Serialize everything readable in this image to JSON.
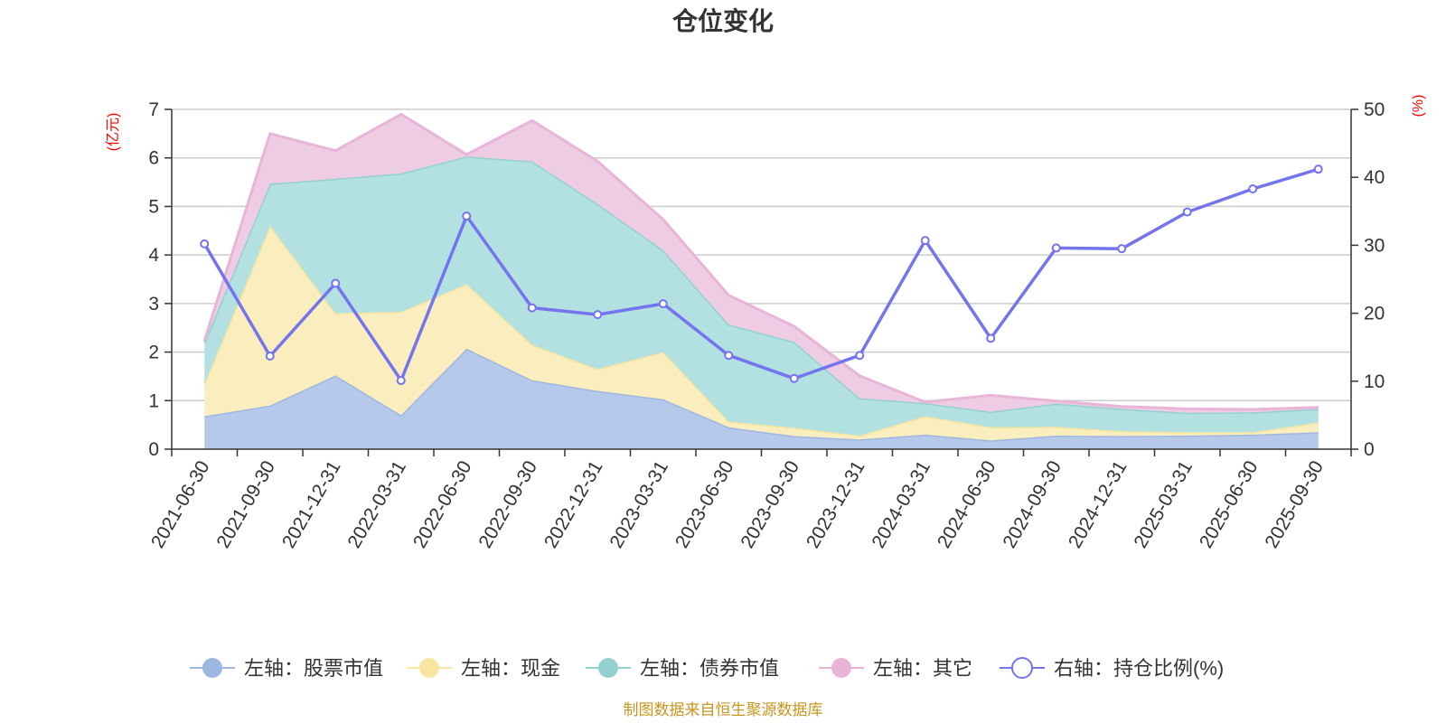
{
  "chart_data": {
    "type": "area",
    "title": "仓位变化",
    "left_axis_unit": "(亿元)",
    "right_axis_unit": "(%)",
    "left_ylim": [
      0,
      7
    ],
    "left_ticks": [
      0,
      1,
      2,
      3,
      4,
      5,
      6,
      7
    ],
    "right_ylim": [
      0,
      50
    ],
    "right_ticks": [
      0,
      10,
      20,
      30,
      40,
      50
    ],
    "categories": [
      "2021-06-30",
      "2021-09-30",
      "2021-12-31",
      "2022-03-31",
      "2022-06-30",
      "2022-09-30",
      "2022-12-31",
      "2023-03-31",
      "2023-06-30",
      "2023-09-30",
      "2023-12-31",
      "2024-03-31",
      "2024-06-30",
      "2024-09-30",
      "2024-12-31",
      "2025-03-31",
      "2025-06-30",
      "2025-09-30"
    ],
    "stacked_series": [
      {
        "name": "左轴：股票市值",
        "axis": "left",
        "color": "#9db7e0",
        "fill": "#b7c9ea",
        "values": [
          0.68,
          0.9,
          1.52,
          0.7,
          2.07,
          1.42,
          1.2,
          1.03,
          0.45,
          0.27,
          0.2,
          0.3,
          0.18,
          0.28,
          0.27,
          0.28,
          0.3,
          0.35
        ]
      },
      {
        "name": "左轴：现金",
        "axis": "left",
        "color": "#f8e6a0",
        "fill": "#faedbe",
        "values": [
          0.67,
          3.7,
          1.28,
          2.13,
          1.33,
          0.73,
          0.45,
          0.97,
          0.12,
          0.17,
          0.08,
          0.38,
          0.27,
          0.18,
          0.1,
          0.07,
          0.05,
          0.2
        ]
      },
      {
        "name": "左轴：债券市值",
        "axis": "left",
        "color": "#93d1d1",
        "fill": "#b3e0e0",
        "values": [
          0.85,
          0.87,
          2.77,
          2.85,
          2.63,
          3.78,
          3.4,
          2.1,
          2.0,
          1.77,
          0.77,
          0.27,
          0.32,
          0.48,
          0.46,
          0.4,
          0.41,
          0.28
        ]
      },
      {
        "name": "左轴：其它",
        "axis": "left",
        "color": "#e8b5d8",
        "fill": "#eecce3",
        "values": [
          0.04,
          1.03,
          0.58,
          1.22,
          0.04,
          0.84,
          0.88,
          0.63,
          0.6,
          0.32,
          0.46,
          0.02,
          0.34,
          0.05,
          0.05,
          0.08,
          0.06,
          0.03
        ]
      }
    ],
    "line_series": {
      "name": "右轴：持仓比例(%)",
      "axis": "right",
      "color": "#7474ee",
      "values": [
        30.2,
        13.7,
        24.4,
        10.1,
        34.3,
        20.8,
        19.8,
        21.4,
        13.8,
        10.4,
        13.8,
        30.7,
        16.3,
        29.6,
        29.5,
        34.9,
        38.3,
        41.2
      ]
    },
    "legend_position": "bottom",
    "grid": true
  },
  "source_note": "制图数据来自恒生聚源数据库"
}
